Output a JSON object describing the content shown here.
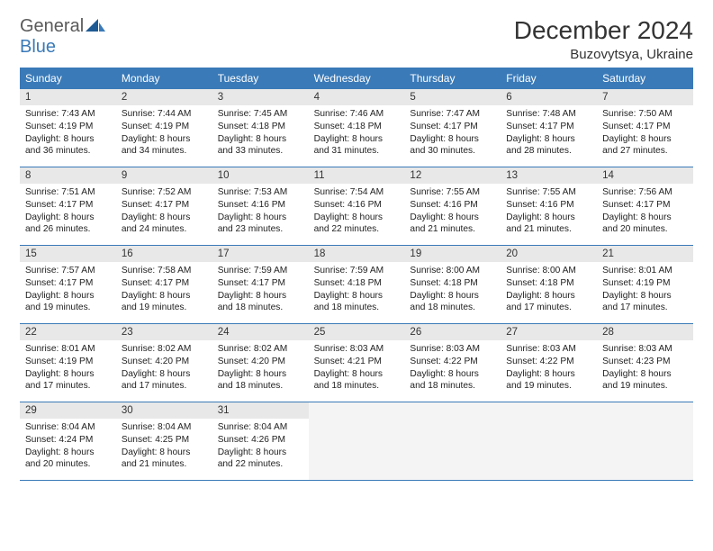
{
  "logo": {
    "part1": "General",
    "part2": "Blue"
  },
  "title": "December 2024",
  "location": "Buzovytsya, Ukraine",
  "dayNames": [
    "Sunday",
    "Monday",
    "Tuesday",
    "Wednesday",
    "Thursday",
    "Friday",
    "Saturday"
  ],
  "colors": {
    "headerBlue": "#3a7ab8",
    "cellLabelBg": "#e8e8e8",
    "emptyBg": "#f4f4f4",
    "text": "#222222",
    "logoGray": "#5a5a5a"
  },
  "weeks": [
    [
      {
        "n": "1",
        "sr": "7:43 AM",
        "ss": "4:19 PM",
        "dl": "8 hours and 36 minutes."
      },
      {
        "n": "2",
        "sr": "7:44 AM",
        "ss": "4:19 PM",
        "dl": "8 hours and 34 minutes."
      },
      {
        "n": "3",
        "sr": "7:45 AM",
        "ss": "4:18 PM",
        "dl": "8 hours and 33 minutes."
      },
      {
        "n": "4",
        "sr": "7:46 AM",
        "ss": "4:18 PM",
        "dl": "8 hours and 31 minutes."
      },
      {
        "n": "5",
        "sr": "7:47 AM",
        "ss": "4:17 PM",
        "dl": "8 hours and 30 minutes."
      },
      {
        "n": "6",
        "sr": "7:48 AM",
        "ss": "4:17 PM",
        "dl": "8 hours and 28 minutes."
      },
      {
        "n": "7",
        "sr": "7:50 AM",
        "ss": "4:17 PM",
        "dl": "8 hours and 27 minutes."
      }
    ],
    [
      {
        "n": "8",
        "sr": "7:51 AM",
        "ss": "4:17 PM",
        "dl": "8 hours and 26 minutes."
      },
      {
        "n": "9",
        "sr": "7:52 AM",
        "ss": "4:17 PM",
        "dl": "8 hours and 24 minutes."
      },
      {
        "n": "10",
        "sr": "7:53 AM",
        "ss": "4:16 PM",
        "dl": "8 hours and 23 minutes."
      },
      {
        "n": "11",
        "sr": "7:54 AM",
        "ss": "4:16 PM",
        "dl": "8 hours and 22 minutes."
      },
      {
        "n": "12",
        "sr": "7:55 AM",
        "ss": "4:16 PM",
        "dl": "8 hours and 21 minutes."
      },
      {
        "n": "13",
        "sr": "7:55 AM",
        "ss": "4:16 PM",
        "dl": "8 hours and 21 minutes."
      },
      {
        "n": "14",
        "sr": "7:56 AM",
        "ss": "4:17 PM",
        "dl": "8 hours and 20 minutes."
      }
    ],
    [
      {
        "n": "15",
        "sr": "7:57 AM",
        "ss": "4:17 PM",
        "dl": "8 hours and 19 minutes."
      },
      {
        "n": "16",
        "sr": "7:58 AM",
        "ss": "4:17 PM",
        "dl": "8 hours and 19 minutes."
      },
      {
        "n": "17",
        "sr": "7:59 AM",
        "ss": "4:17 PM",
        "dl": "8 hours and 18 minutes."
      },
      {
        "n": "18",
        "sr": "7:59 AM",
        "ss": "4:18 PM",
        "dl": "8 hours and 18 minutes."
      },
      {
        "n": "19",
        "sr": "8:00 AM",
        "ss": "4:18 PM",
        "dl": "8 hours and 18 minutes."
      },
      {
        "n": "20",
        "sr": "8:00 AM",
        "ss": "4:18 PM",
        "dl": "8 hours and 17 minutes."
      },
      {
        "n": "21",
        "sr": "8:01 AM",
        "ss": "4:19 PM",
        "dl": "8 hours and 17 minutes."
      }
    ],
    [
      {
        "n": "22",
        "sr": "8:01 AM",
        "ss": "4:19 PM",
        "dl": "8 hours and 17 minutes."
      },
      {
        "n": "23",
        "sr": "8:02 AM",
        "ss": "4:20 PM",
        "dl": "8 hours and 17 minutes."
      },
      {
        "n": "24",
        "sr": "8:02 AM",
        "ss": "4:20 PM",
        "dl": "8 hours and 18 minutes."
      },
      {
        "n": "25",
        "sr": "8:03 AM",
        "ss": "4:21 PM",
        "dl": "8 hours and 18 minutes."
      },
      {
        "n": "26",
        "sr": "8:03 AM",
        "ss": "4:22 PM",
        "dl": "8 hours and 18 minutes."
      },
      {
        "n": "27",
        "sr": "8:03 AM",
        "ss": "4:22 PM",
        "dl": "8 hours and 19 minutes."
      },
      {
        "n": "28",
        "sr": "8:03 AM",
        "ss": "4:23 PM",
        "dl": "8 hours and 19 minutes."
      }
    ],
    [
      {
        "n": "29",
        "sr": "8:04 AM",
        "ss": "4:24 PM",
        "dl": "8 hours and 20 minutes."
      },
      {
        "n": "30",
        "sr": "8:04 AM",
        "ss": "4:25 PM",
        "dl": "8 hours and 21 minutes."
      },
      {
        "n": "31",
        "sr": "8:04 AM",
        "ss": "4:26 PM",
        "dl": "8 hours and 22 minutes."
      },
      {
        "empty": true
      },
      {
        "empty": true
      },
      {
        "empty": true
      },
      {
        "empty": true
      }
    ]
  ],
  "labels": {
    "sunrise": "Sunrise: ",
    "sunset": "Sunset: ",
    "daylight": "Daylight: "
  }
}
